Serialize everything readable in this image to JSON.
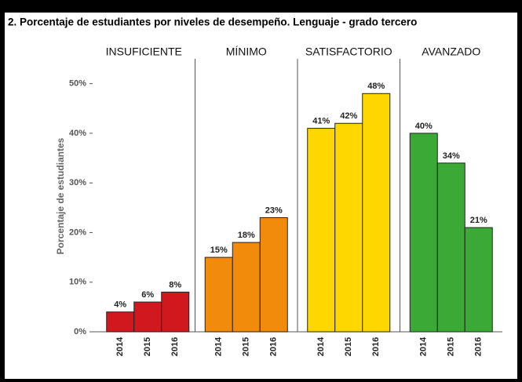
{
  "chart_data": {
    "type": "bar",
    "title": "2. Porcentaje de estudiantes por niveles de desempeño. Lenguaje - grado tercero",
    "y_label": "Porcentaje de estudiantes",
    "categories": [
      "2014",
      "2015",
      "2016"
    ],
    "series": [
      {
        "name": "INSUFICIENTE",
        "color": "#d0181e",
        "values": [
          4,
          6,
          8
        ],
        "value_labels": [
          "4%",
          "6%",
          "8%"
        ]
      },
      {
        "name": "MÍNIMO",
        "color": "#f28a0c",
        "values": [
          15,
          18,
          23
        ],
        "value_labels": [
          "15%",
          "18%",
          "23%"
        ]
      },
      {
        "name": "SATISFACTORIO",
        "color": "#ffd700",
        "values": [
          41,
          42,
          48
        ],
        "value_labels": [
          "41%",
          "42%",
          "48%"
        ]
      },
      {
        "name": "AVANZADO",
        "color": "#3aa935",
        "values": [
          40,
          34,
          21
        ],
        "value_labels": [
          "40%",
          "34%",
          "21%"
        ]
      }
    ],
    "ylim": [
      0,
      55
    ],
    "yticks": [
      {
        "value": 0,
        "label": "0%"
      },
      {
        "value": 10,
        "label": "10%"
      },
      {
        "value": 20,
        "label": "20%"
      },
      {
        "value": 30,
        "label": "30%"
      },
      {
        "value": 40,
        "label": "40%"
      },
      {
        "value": 50,
        "label": "50%"
      }
    ],
    "grid": false
  }
}
